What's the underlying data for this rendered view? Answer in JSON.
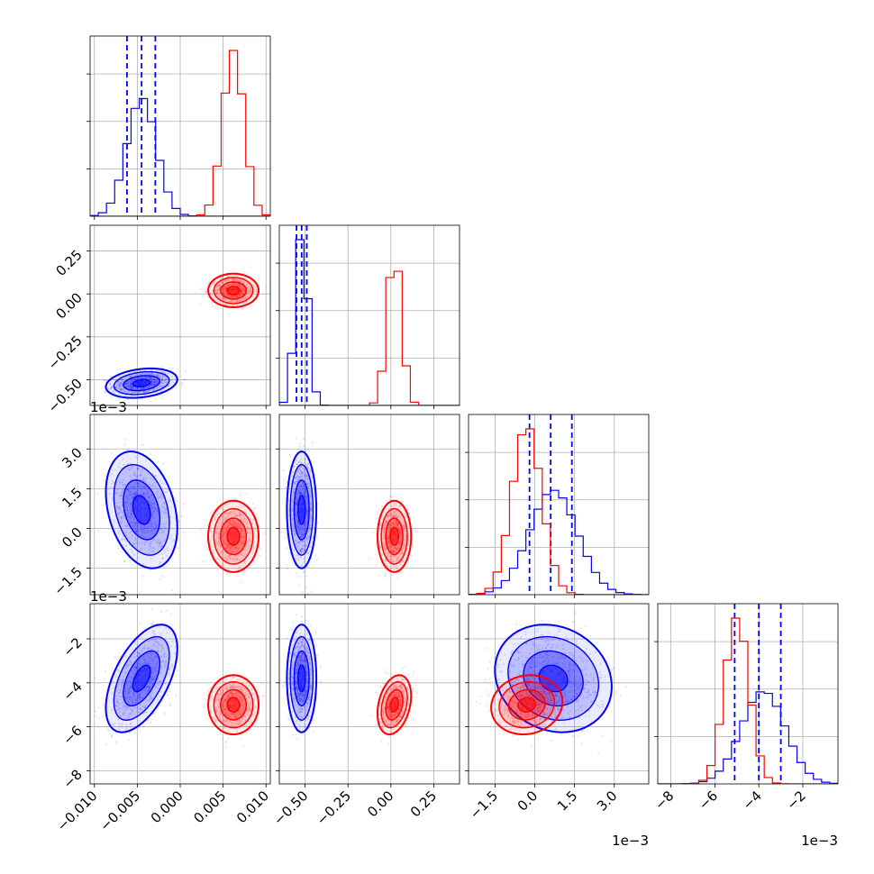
{
  "colors": {
    "series_a": "#0000ff",
    "series_b": "#ff0000",
    "grid": "#b0b0b0",
    "frame": "#000000"
  },
  "chart_data": {
    "type": "scatter",
    "kind": "corner-plot",
    "grid": true,
    "parameters": [
      {
        "range": [
          -0.0105,
          0.0105
        ],
        "ticks": [
          -0.01,
          -0.005,
          0.0,
          0.005,
          0.01
        ],
        "tick_labels": [
          "−0.010",
          "−0.005",
          "0.000",
          "0.005",
          "0.010"
        ],
        "offset_label": ""
      },
      {
        "range": [
          -0.65,
          0.4
        ],
        "ticks": [
          -0.5,
          -0.25,
          0.0,
          0.25
        ],
        "tick_labels": [
          "−0.50",
          "−0.25",
          "0.00",
          "0.25"
        ],
        "offset_label": ""
      },
      {
        "range": [
          -2.5,
          4.3
        ],
        "ticks": [
          -1.5,
          0.0,
          1.5,
          3.0
        ],
        "tick_labels": [
          "−1.5",
          "0.0",
          "1.5",
          "3.0"
        ],
        "offset_label": "1e−3"
      },
      {
        "range": [
          -8.6,
          -0.4
        ],
        "ticks": [
          -8,
          -6,
          -4,
          -2
        ],
        "tick_labels": [
          "−8",
          "−6",
          "−4",
          "−2"
        ],
        "offset_label": "1e−3"
      }
    ],
    "series": [
      {
        "color": "#0000ff",
        "mean": [
          -0.0045,
          -0.52,
          0.7,
          -3.8
        ],
        "sd": [
          0.0017,
          0.035,
          0.9,
          1.0
        ],
        "corr": {
          "0-1": 0.25,
          "0-2": -0.3,
          "0-3": 0.55,
          "1-2": 0.0,
          "1-3": 0.0,
          "2-3": -0.15
        },
        "quantiles": [
          [
            -0.0062,
            -0.0045,
            -0.0029
          ],
          [
            -0.55,
            -0.52,
            -0.49
          ],
          [
            -0.2,
            0.6,
            1.4
          ],
          [
            -5.1,
            -4.0,
            -3.0
          ]
        ]
      },
      {
        "color": "#ff0000",
        "mean": [
          0.0062,
          0.02,
          -0.3,
          -5.0
        ],
        "sd": [
          0.0012,
          0.04,
          0.55,
          0.55
        ],
        "corr": {
          "0-1": 0.0,
          "0-2": 0.0,
          "0-3": 0.0,
          "1-2": 0.0,
          "1-3": 0.3,
          "2-3": 0.1
        },
        "quantiles": null
      }
    ]
  }
}
